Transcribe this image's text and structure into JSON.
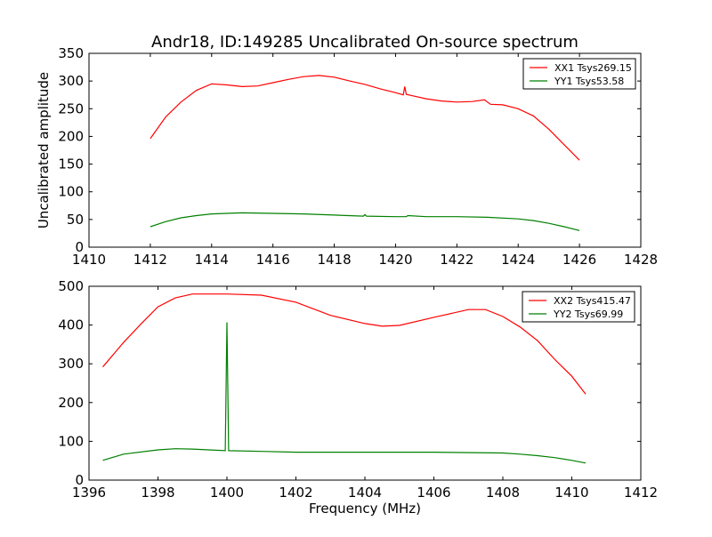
{
  "chart_data": [
    {
      "type": "line",
      "title": "Andr18, ID:149285 Uncalibrated On-source spectrum",
      "xlabel": "",
      "ylabel": "Uncalibrated amplitude",
      "xlim": [
        1410,
        1428
      ],
      "ylim": [
        0,
        350
      ],
      "xticks": [
        1410,
        1412,
        1414,
        1416,
        1418,
        1420,
        1422,
        1424,
        1426,
        1428
      ],
      "yticks": [
        0,
        50,
        100,
        150,
        200,
        250,
        300,
        350
      ],
      "legend_position": "top-right",
      "grid": false,
      "series": [
        {
          "name": "XX1 Tsys269.15",
          "color": "#ff0000",
          "x": [
            1412,
            1412.5,
            1413,
            1413.5,
            1414,
            1414.5,
            1415,
            1415.5,
            1416,
            1416.5,
            1417,
            1417.5,
            1418,
            1418.5,
            1419,
            1419.5,
            1420,
            1420.25,
            1420.3,
            1420.35,
            1420.5,
            1421,
            1421.5,
            1422,
            1422.5,
            1422.9,
            1423.1,
            1423.5,
            1424,
            1424.5,
            1425,
            1425.5,
            1426
          ],
          "y": [
            196,
            235,
            262,
            283,
            295,
            293,
            290,
            291,
            297,
            303,
            308,
            310,
            307,
            300,
            294,
            286,
            279,
            275,
            290,
            276,
            274,
            268,
            264,
            262,
            263,
            266,
            258,
            257,
            250,
            237,
            213,
            185,
            157
          ]
        },
        {
          "name": "YY1 Tsys53.58",
          "color": "#008000",
          "x": [
            1412,
            1412.5,
            1413,
            1413.5,
            1414,
            1415,
            1416,
            1417,
            1418,
            1418.95,
            1419,
            1419.05,
            1420,
            1420.35,
            1420.4,
            1421,
            1422,
            1423,
            1424,
            1424.5,
            1425,
            1425.5,
            1426
          ],
          "y": [
            37,
            46,
            53,
            57,
            60,
            62,
            61,
            60,
            58,
            56,
            59,
            56,
            55,
            55,
            57,
            55,
            55,
            54,
            51,
            48,
            43,
            37,
            30
          ]
        }
      ]
    },
    {
      "type": "line",
      "title": "",
      "xlabel": "Frequency (MHz)",
      "ylabel": "",
      "xlim": [
        1396,
        1412
      ],
      "ylim": [
        0,
        500
      ],
      "xticks": [
        1396,
        1398,
        1400,
        1402,
        1404,
        1406,
        1408,
        1410,
        1412
      ],
      "yticks": [
        0,
        100,
        200,
        300,
        400,
        500
      ],
      "legend_position": "top-right",
      "grid": false,
      "series": [
        {
          "name": "XX2 Tsys415.47",
          "color": "#ff0000",
          "x": [
            1396.4,
            1397,
            1397.5,
            1398,
            1398.5,
            1399,
            1400,
            1401,
            1402,
            1403,
            1404,
            1404.5,
            1405,
            1406,
            1407,
            1407.5,
            1408,
            1408.5,
            1409,
            1409.5,
            1410,
            1410.4
          ],
          "y": [
            292,
            355,
            402,
            447,
            470,
            480,
            480,
            477,
            459,
            425,
            404,
            397,
            399,
            420,
            440,
            440,
            422,
            395,
            360,
            312,
            268,
            222
          ]
        },
        {
          "name": "YY2 Tsys69.99",
          "color": "#008000",
          "x": [
            1396.4,
            1397,
            1398,
            1398.5,
            1399,
            1399.95,
            1400,
            1400.05,
            1401,
            1402,
            1404,
            1406,
            1408,
            1408.5,
            1409,
            1409.5,
            1410,
            1410.4
          ],
          "y": [
            51,
            67,
            78,
            81,
            80,
            76,
            407,
            76,
            74,
            72,
            72,
            72,
            70,
            67,
            63,
            58,
            51,
            44
          ]
        }
      ]
    }
  ]
}
